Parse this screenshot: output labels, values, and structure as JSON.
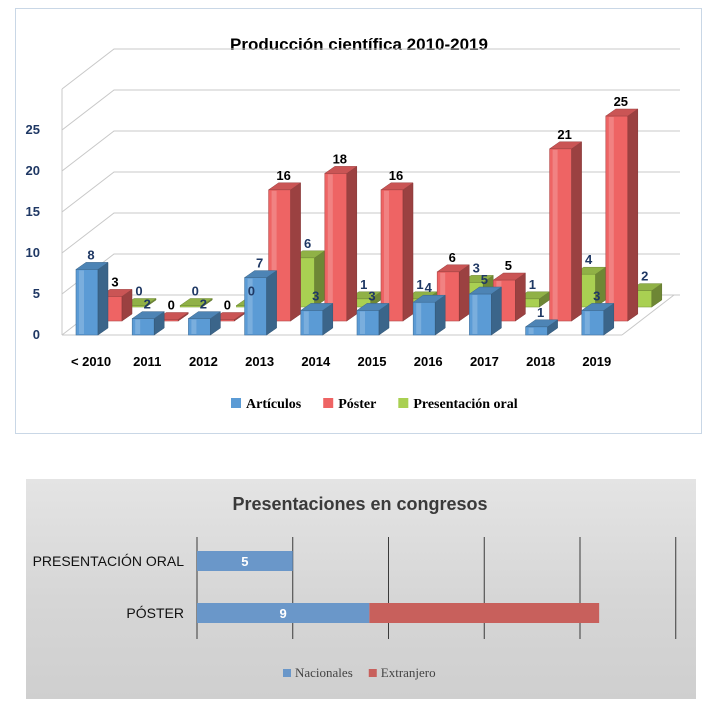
{
  "chart_data": [
    {
      "type": "bar",
      "title": "Producción científica 2010-2019",
      "categories": [
        "< 2010",
        "2011",
        "2012",
        "2013",
        "2014",
        "2015",
        "2016",
        "2017",
        "2018",
        "2019"
      ],
      "series": [
        {
          "name": "Artículos",
          "values": [
            8,
            2,
            2,
            7,
            3,
            3,
            4,
            5,
            1,
            3
          ]
        },
        {
          "name": "Póster",
          "values": [
            3,
            0,
            0,
            16,
            18,
            16,
            6,
            5,
            21,
            25
          ]
        },
        {
          "name": "Presentación oral",
          "values": [
            0,
            0,
            0,
            6,
            1,
            1,
            3,
            1,
            4,
            2
          ]
        }
      ],
      "y_ticks": [
        0,
        5,
        10,
        15,
        20,
        25
      ],
      "ylim": [
        0,
        30
      ],
      "style": "3d-clustered-column",
      "grid": true,
      "legend": "bottom",
      "colors": {
        "Artículos": "#5b9bd5",
        "Póster": "#ee6464",
        "Presentación oral": "#a9d052"
      }
    },
    {
      "type": "bar",
      "orientation": "horizontal",
      "stacked": true,
      "title": "Presentaciones en congresos",
      "categories": [
        "PRESENTACIÓN ORAL",
        "PÓSTER"
      ],
      "series": [
        {
          "name": "Nacionales",
          "values": [
            5,
            9
          ]
        },
        {
          "name": "Extranjero",
          "values": [
            0,
            12
          ]
        }
      ],
      "data_labels": [
        "5",
        "9"
      ],
      "xlim": [
        0,
        25
      ],
      "grid": true,
      "legend": "bottom",
      "colors": {
        "Nacionales": "#6a97c9",
        "Extranjero": "#c8605c"
      }
    }
  ]
}
